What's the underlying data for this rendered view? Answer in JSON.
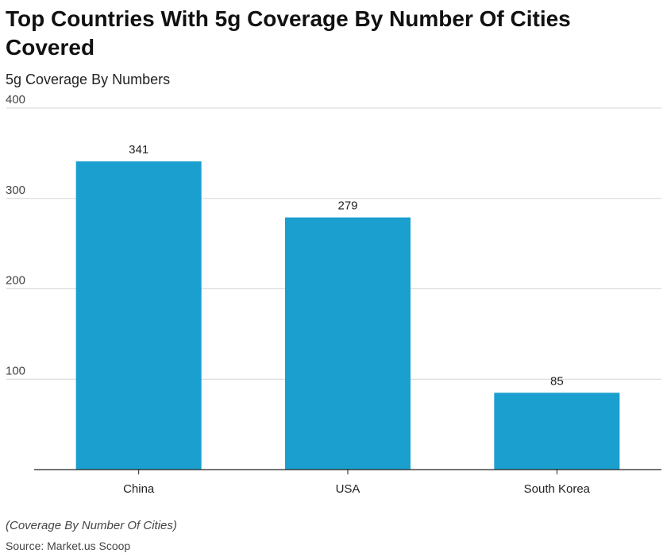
{
  "chart_data": {
    "type": "bar",
    "title": "Top Countries With 5g Coverage By Number Of Cities Covered",
    "subtitle": "5g Coverage By Numbers",
    "categories": [
      "China",
      "USA",
      "South Korea"
    ],
    "values": [
      341,
      279,
      85
    ],
    "data_labels": [
      "341",
      "279",
      "85"
    ],
    "ylim": [
      0,
      400
    ],
    "yticks": [
      100,
      200,
      300,
      400
    ],
    "ytick_labels": [
      "100",
      "200",
      "300",
      "400"
    ],
    "grid": true,
    "bar_color": "#1a9fce",
    "note": "(Coverage By Number Of Cities)",
    "source": "Source: Market.us Scoop"
  }
}
